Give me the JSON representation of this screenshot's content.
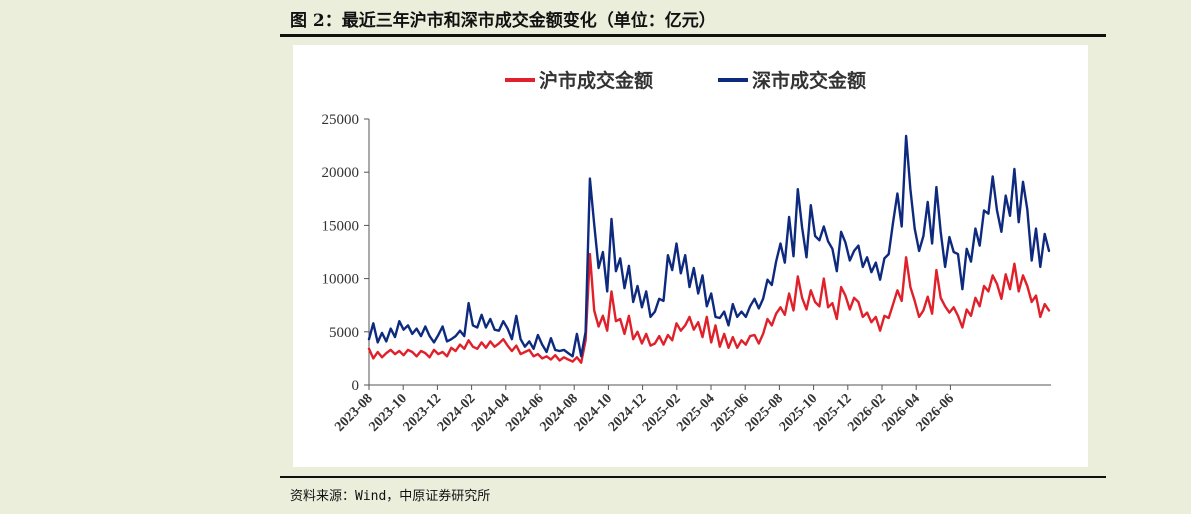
{
  "figure": {
    "title": "图 2：最近三年沪市和深市成交金额变化（单位：亿元）",
    "source": "资料来源：Wind，中原证券研究所"
  },
  "chart_data": {
    "type": "line",
    "title": "",
    "xlabel": "",
    "ylabel": "",
    "ylim": [
      0,
      25000
    ],
    "yticks": [
      "0",
      "5000",
      "10000",
      "15000",
      "20000",
      "25000"
    ],
    "xticks": [
      "2023-08",
      "2023-10",
      "2023-12",
      "2024-02",
      "2024-04",
      "2024-06",
      "2024-08",
      "2024-10",
      "2024-12",
      "2025-02",
      "2025-04",
      "2025-06",
      "2025-08",
      "2025-10",
      "2025-12",
      "2026-02",
      "2026-04",
      "2026-06"
    ],
    "x_start": "2023-08",
    "legend_position": "top-center",
    "grid": false,
    "series": [
      {
        "name": "沪市成交金额",
        "color": "#e0202a",
        "values": [
          3400,
          2500,
          3100,
          2600,
          3000,
          3300,
          2900,
          3200,
          2800,
          3300,
          3100,
          2700,
          3200,
          3000,
          2600,
          3300,
          2900,
          3100,
          2700,
          3500,
          3200,
          3800,
          3400,
          4200,
          3600,
          3400,
          4000,
          3500,
          4100,
          3600,
          3900,
          4300,
          3700,
          3200,
          3700,
          2900,
          3100,
          3300,
          2700,
          2900,
          2500,
          2700,
          2400,
          2800,
          2300,
          2600,
          2400,
          2200,
          2600,
          2100,
          4200,
          12300,
          7000,
          5500,
          6500,
          5100,
          8800,
          6000,
          6200,
          4800,
          6500,
          4300,
          5000,
          3900,
          4800,
          3700,
          3900,
          4600,
          3800,
          4700,
          4200,
          5800,
          5100,
          5600,
          6400,
          5200,
          5900,
          4500,
          6400,
          4000,
          5600,
          3600,
          4800,
          3500,
          4500,
          3500,
          4200,
          3800,
          4600,
          4700,
          3900,
          4800,
          6200,
          5600,
          6700,
          7300,
          6600,
          8600,
          7000,
          10200,
          8200,
          7100,
          8900,
          7800,
          7400,
          10000,
          7300,
          7700,
          6200,
          9200,
          8400,
          7100,
          8200,
          7800,
          6400,
          6800,
          5900,
          6400,
          5100,
          6500,
          6300,
          7600,
          8900,
          7900,
          12000,
          9200,
          7900,
          6400,
          7000,
          8300,
          6700,
          10800,
          8200,
          7400,
          6800,
          7300,
          6500,
          5400,
          7100,
          6500,
          8200,
          7400,
          9300,
          8800,
          10300,
          9500,
          8100,
          10400,
          9000,
          11400,
          8800,
          10300,
          9300,
          7800,
          8400,
          6400,
          7600,
          7000
        ],
        "points": 160
      },
      {
        "name": "深市成交金额",
        "color": "#0e2a7e",
        "values": [
          4300,
          5800,
          4000,
          4900,
          4100,
          5300,
          4500,
          6000,
          5200,
          5600,
          4800,
          5300,
          4600,
          5500,
          4600,
          4000,
          4700,
          5500,
          4100,
          4300,
          4600,
          5100,
          4600,
          7700,
          5600,
          5400,
          6600,
          5400,
          6200,
          5200,
          5100,
          6000,
          5300,
          4300,
          6500,
          4300,
          3600,
          4100,
          3400,
          4700,
          3800,
          3100,
          4400,
          3300,
          3200,
          3300,
          3000,
          2700,
          4800,
          2700,
          5000,
          19400,
          15100,
          11000,
          12500,
          8800,
          15600,
          10700,
          11900,
          9100,
          11200,
          7800,
          9300,
          7300,
          8800,
          6400,
          6900,
          8100,
          7900,
          12200,
          10800,
          13300,
          10500,
          12200,
          9200,
          11000,
          8600,
          10300,
          7400,
          8600,
          6400,
          6300,
          6900,
          5600,
          7600,
          6400,
          6900,
          6400,
          7400,
          8100,
          7200,
          8100,
          9900,
          9400,
          11600,
          13300,
          11500,
          15800,
          12100,
          18400,
          14800,
          12000,
          16900,
          14000,
          13600,
          14900,
          13500,
          12800,
          10700,
          14400,
          13400,
          11700,
          12600,
          13100,
          11100,
          12000,
          10600,
          11500,
          9900,
          11900,
          12300,
          15300,
          18000,
          14900,
          23400,
          18400,
          14700,
          12600,
          14000,
          17200,
          13300,
          18600,
          14400,
          11100,
          13900,
          12500,
          12300,
          9000,
          12800,
          11600,
          14700,
          13100,
          16400,
          16100,
          19600,
          16400,
          14400,
          17800,
          15900,
          20300,
          15300,
          19100,
          16500,
          11700,
          14700,
          11100,
          14200,
          12600
        ],
        "points": 160
      }
    ]
  }
}
